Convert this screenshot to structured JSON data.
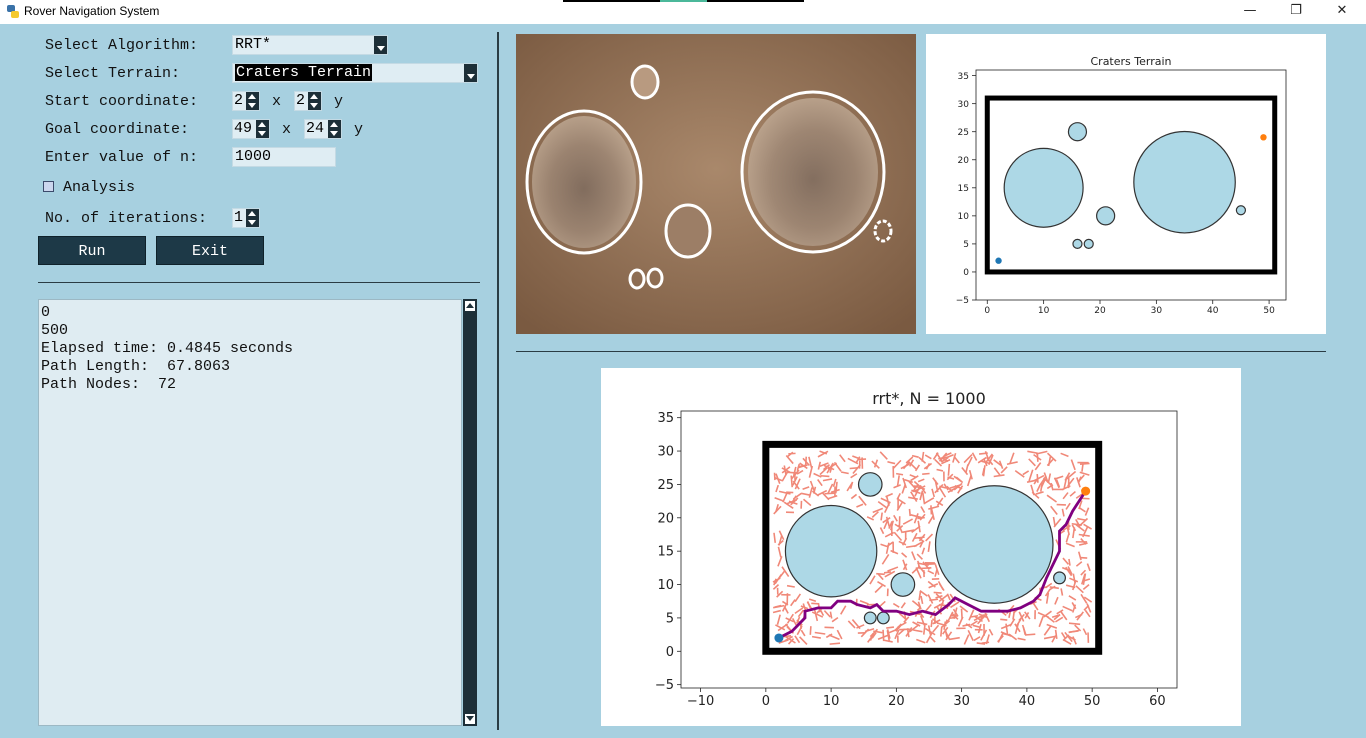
{
  "window": {
    "title": "Rover Navigation System",
    "minimize": "—",
    "restore": "❐",
    "close": "✕"
  },
  "form": {
    "algorithm_label": "Select Algorithm:",
    "algorithm_value": "RRT*",
    "terrain_label": "Select Terrain:",
    "terrain_value": "Craters Terrain",
    "start_label": "Start coordinate:",
    "start_x": "2",
    "start_y": "2",
    "goal_label": "Goal coordinate:",
    "goal_x": "49",
    "goal_y": "24",
    "x_sep": "x",
    "y_sep": "y",
    "n_label": "Enter value of n:",
    "n_value": "1000",
    "analysis_label": "Analysis",
    "iterations_label": "No. of iterations:",
    "iterations_value": "1"
  },
  "buttons": {
    "run": "Run",
    "exit": "Exit"
  },
  "output": {
    "lines": [
      "0",
      "500",
      "Elapsed time: 0.4845 seconds",
      "Path Length:  67.8063",
      "Path Nodes:  72"
    ]
  },
  "colors": {
    "background": "#a7d0e0",
    "crater_fill": "#add8e6",
    "tree": "#f08878",
    "path": "#800080",
    "start": "#1f77b4",
    "goal": "#ff7f0e"
  },
  "chart_data": [
    {
      "type": "scatter",
      "title": "Craters Terrain",
      "xlim": [
        -2,
        53
      ],
      "ylim": [
        -5,
        36
      ],
      "xticks": [
        0,
        10,
        20,
        30,
        40,
        50
      ],
      "yticks": [
        -5,
        0,
        5,
        10,
        15,
        20,
        25,
        30,
        35
      ],
      "boundary": [
        0,
        0,
        51,
        31
      ],
      "craters": [
        {
          "x": 10,
          "y": 15,
          "r": 7
        },
        {
          "x": 35,
          "y": 16,
          "r": 9
        },
        {
          "x": 16,
          "y": 25,
          "r": 1.6
        },
        {
          "x": 21,
          "y": 10,
          "r": 1.6
        },
        {
          "x": 16,
          "y": 5,
          "r": 0.8
        },
        {
          "x": 18,
          "y": 5,
          "r": 0.8
        },
        {
          "x": 45,
          "y": 11,
          "r": 0.8
        }
      ],
      "start": [
        2,
        2
      ],
      "goal": [
        49,
        24
      ]
    },
    {
      "type": "line",
      "title": "rrt*, N = 1000",
      "xlim": [
        -13,
        63
      ],
      "ylim": [
        -5.5,
        36
      ],
      "xticks": [
        -10,
        0,
        10,
        20,
        30,
        40,
        50,
        60
      ],
      "yticks": [
        -5,
        0,
        5,
        10,
        15,
        20,
        25,
        30,
        35
      ],
      "boundary": [
        0,
        0,
        51,
        31
      ],
      "craters": [
        {
          "x": 10,
          "y": 15,
          "r": 7
        },
        {
          "x": 35,
          "y": 16,
          "r": 9
        },
        {
          "x": 16,
          "y": 25,
          "r": 1.8
        },
        {
          "x": 21,
          "y": 10,
          "r": 1.8
        },
        {
          "x": 16,
          "y": 5,
          "r": 0.9
        },
        {
          "x": 18,
          "y": 5,
          "r": 0.9
        },
        {
          "x": 45,
          "y": 11,
          "r": 0.9
        }
      ],
      "path": [
        [
          2,
          2
        ],
        [
          4,
          3
        ],
        [
          6,
          5
        ],
        [
          6,
          6
        ],
        [
          8,
          6.5
        ],
        [
          10,
          6.5
        ],
        [
          11,
          7.5
        ],
        [
          13,
          7.5
        ],
        [
          14,
          7
        ],
        [
          16,
          6.5
        ],
        [
          17,
          7
        ],
        [
          18,
          6
        ],
        [
          20,
          6
        ],
        [
          22,
          5.5
        ],
        [
          24,
          6
        ],
        [
          26,
          5.5
        ],
        [
          28,
          7
        ],
        [
          29,
          8
        ],
        [
          31,
          7
        ],
        [
          33,
          6
        ],
        [
          35,
          6
        ],
        [
          37,
          6
        ],
        [
          39,
          6.5
        ],
        [
          41,
          7.5
        ],
        [
          42,
          8.5
        ],
        [
          43,
          11
        ],
        [
          44,
          13
        ],
        [
          45,
          15
        ],
        [
          45,
          18
        ],
        [
          46,
          19
        ],
        [
          47,
          21
        ],
        [
          48,
          22.5
        ],
        [
          49,
          24
        ]
      ],
      "start": [
        2,
        2
      ],
      "goal": [
        49,
        24
      ]
    }
  ]
}
